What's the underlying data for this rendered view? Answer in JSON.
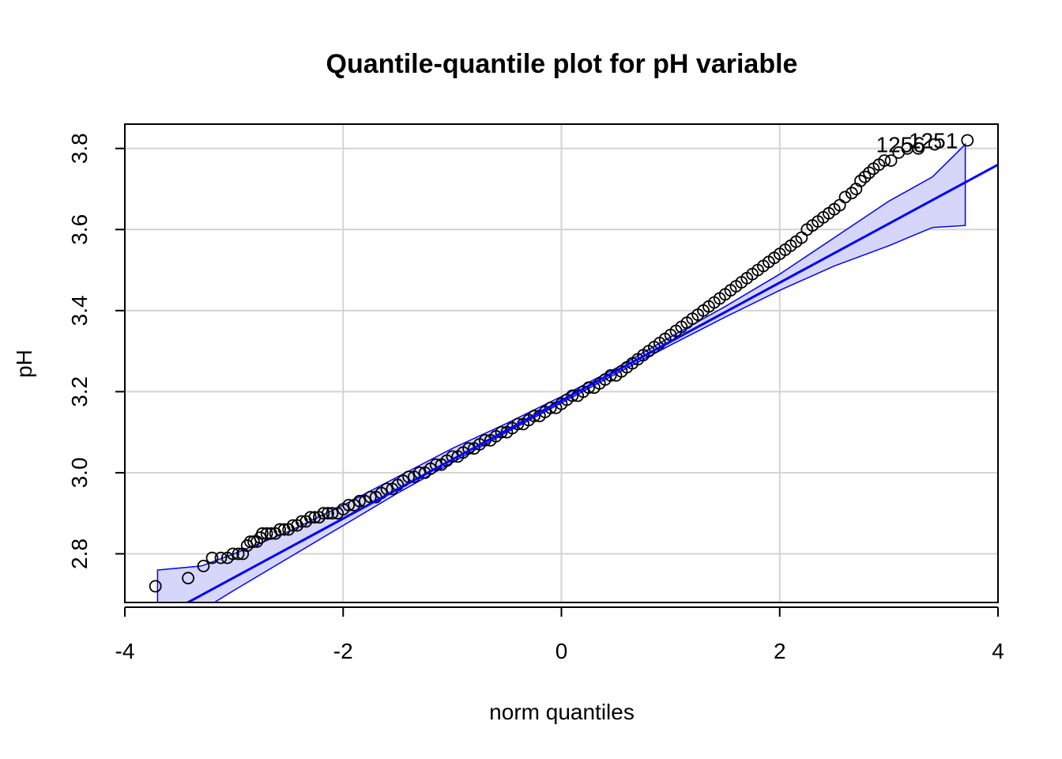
{
  "chart_data": {
    "type": "scatter",
    "title": "Quantile-quantile plot for pH variable",
    "xlabel": "norm quantiles",
    "ylabel": "pH",
    "xlim": [
      -4,
      4
    ],
    "ylim": [
      2.68,
      3.86
    ],
    "x_ticks": [
      -4,
      -2,
      0,
      2,
      4
    ],
    "y_ticks": [
      2.8,
      3.0,
      3.2,
      3.4,
      3.6,
      3.8
    ],
    "grid": true,
    "reference_line": {
      "intercept": 3.178,
      "slope": 0.1455
    },
    "confidence_envelope": {
      "x": [
        -3.7,
        -3.3,
        -3.0,
        -2.5,
        -2.0,
        -1.5,
        -1.0,
        -0.5,
        0.0,
        0.5,
        1.0,
        1.5,
        2.0,
        2.5,
        3.0,
        3.4,
        3.7
      ],
      "lower": [
        2.58,
        2.66,
        2.71,
        2.79,
        2.87,
        2.95,
        3.025,
        3.1,
        3.172,
        3.244,
        3.315,
        3.384,
        3.45,
        3.51,
        3.56,
        3.605,
        3.61
      ],
      "upper": [
        2.76,
        2.77,
        2.8,
        2.855,
        2.92,
        2.99,
        3.06,
        3.122,
        3.188,
        3.258,
        3.335,
        3.41,
        3.49,
        3.58,
        3.67,
        3.73,
        3.81
      ]
    },
    "points": [
      [
        -3.72,
        2.72
      ],
      [
        -3.42,
        2.74
      ],
      [
        -3.28,
        2.77
      ],
      [
        -3.2,
        2.79
      ],
      [
        -3.12,
        2.79
      ],
      [
        -3.06,
        2.79
      ],
      [
        -3.01,
        2.8
      ],
      [
        -2.96,
        2.8
      ],
      [
        -2.92,
        2.8
      ],
      [
        -2.88,
        2.82
      ],
      [
        -2.85,
        2.83
      ],
      [
        -2.82,
        2.83
      ],
      [
        -2.79,
        2.83
      ],
      [
        -2.76,
        2.84
      ],
      [
        -2.74,
        2.85
      ],
      [
        -2.7,
        2.85
      ],
      [
        -2.66,
        2.85
      ],
      [
        -2.62,
        2.85
      ],
      [
        -2.58,
        2.86
      ],
      [
        -2.54,
        2.86
      ],
      [
        -2.5,
        2.86
      ],
      [
        -2.46,
        2.87
      ],
      [
        -2.42,
        2.87
      ],
      [
        -2.38,
        2.88
      ],
      [
        -2.34,
        2.88
      ],
      [
        -2.3,
        2.89
      ],
      [
        -2.26,
        2.89
      ],
      [
        -2.22,
        2.89
      ],
      [
        -2.18,
        2.9
      ],
      [
        -2.14,
        2.9
      ],
      [
        -2.1,
        2.9
      ],
      [
        -2.05,
        2.9
      ],
      [
        -2.0,
        2.91
      ],
      [
        -1.95,
        2.92
      ],
      [
        -1.9,
        2.92
      ],
      [
        -1.85,
        2.93
      ],
      [
        -1.8,
        2.93
      ],
      [
        -1.75,
        2.94
      ],
      [
        -1.7,
        2.94
      ],
      [
        -1.65,
        2.95
      ],
      [
        -1.6,
        2.96
      ],
      [
        -1.55,
        2.96
      ],
      [
        -1.5,
        2.97
      ],
      [
        -1.45,
        2.98
      ],
      [
        -1.4,
        2.99
      ],
      [
        -1.35,
        2.99
      ],
      [
        -1.3,
        3.0
      ],
      [
        -1.25,
        3.0
      ],
      [
        -1.2,
        3.01
      ],
      [
        -1.15,
        3.02
      ],
      [
        -1.1,
        3.02
      ],
      [
        -1.05,
        3.03
      ],
      [
        -1.0,
        3.04
      ],
      [
        -0.95,
        3.04
      ],
      [
        -0.9,
        3.05
      ],
      [
        -0.85,
        3.06
      ],
      [
        -0.8,
        3.06
      ],
      [
        -0.75,
        3.07
      ],
      [
        -0.7,
        3.08
      ],
      [
        -0.65,
        3.08
      ],
      [
        -0.6,
        3.09
      ],
      [
        -0.55,
        3.1
      ],
      [
        -0.5,
        3.1
      ],
      [
        -0.45,
        3.11
      ],
      [
        -0.4,
        3.12
      ],
      [
        -0.35,
        3.12
      ],
      [
        -0.3,
        3.13
      ],
      [
        -0.25,
        3.14
      ],
      [
        -0.2,
        3.14
      ],
      [
        -0.15,
        3.15
      ],
      [
        -0.1,
        3.16
      ],
      [
        -0.05,
        3.16
      ],
      [
        0.0,
        3.17
      ],
      [
        0.05,
        3.18
      ],
      [
        0.1,
        3.19
      ],
      [
        0.15,
        3.19
      ],
      [
        0.2,
        3.2
      ],
      [
        0.25,
        3.21
      ],
      [
        0.3,
        3.21
      ],
      [
        0.35,
        3.22
      ],
      [
        0.4,
        3.23
      ],
      [
        0.45,
        3.24
      ],
      [
        0.5,
        3.24
      ],
      [
        0.55,
        3.25
      ],
      [
        0.6,
        3.26
      ],
      [
        0.65,
        3.27
      ],
      [
        0.7,
        3.28
      ],
      [
        0.75,
        3.29
      ],
      [
        0.8,
        3.3
      ],
      [
        0.85,
        3.31
      ],
      [
        0.9,
        3.32
      ],
      [
        0.95,
        3.33
      ],
      [
        1.0,
        3.34
      ],
      [
        1.05,
        3.35
      ],
      [
        1.1,
        3.36
      ],
      [
        1.15,
        3.37
      ],
      [
        1.2,
        3.38
      ],
      [
        1.25,
        3.39
      ],
      [
        1.3,
        3.4
      ],
      [
        1.35,
        3.41
      ],
      [
        1.4,
        3.42
      ],
      [
        1.45,
        3.43
      ],
      [
        1.5,
        3.44
      ],
      [
        1.55,
        3.45
      ],
      [
        1.6,
        3.46
      ],
      [
        1.65,
        3.47
      ],
      [
        1.7,
        3.48
      ],
      [
        1.75,
        3.49
      ],
      [
        1.8,
        3.5
      ],
      [
        1.85,
        3.51
      ],
      [
        1.9,
        3.52
      ],
      [
        1.95,
        3.53
      ],
      [
        2.0,
        3.54
      ],
      [
        2.05,
        3.55
      ],
      [
        2.1,
        3.56
      ],
      [
        2.15,
        3.57
      ],
      [
        2.2,
        3.58
      ],
      [
        2.25,
        3.6
      ],
      [
        2.3,
        3.61
      ],
      [
        2.35,
        3.62
      ],
      [
        2.4,
        3.63
      ],
      [
        2.45,
        3.64
      ],
      [
        2.5,
        3.65
      ],
      [
        2.55,
        3.66
      ],
      [
        2.6,
        3.68
      ],
      [
        2.66,
        3.69
      ],
      [
        2.7,
        3.7
      ],
      [
        2.74,
        3.72
      ],
      [
        2.78,
        3.73
      ],
      [
        2.82,
        3.74
      ],
      [
        2.86,
        3.75
      ],
      [
        2.91,
        3.76
      ],
      [
        2.96,
        3.77
      ],
      [
        3.02,
        3.77
      ],
      [
        3.09,
        3.79
      ],
      [
        3.17,
        3.8
      ],
      [
        3.27,
        3.8
      ],
      [
        3.42,
        3.81
      ],
      [
        3.72,
        3.82
      ]
    ],
    "labeled_points": [
      {
        "label": "1256",
        "x": 3.42,
        "y": 3.81
      },
      {
        "label": "1251",
        "x": 3.72,
        "y": 3.82
      }
    ],
    "colors": {
      "line": "#0000ff",
      "band_fill": "#d6d6fa",
      "grid": "#d3d3d3",
      "points": "#000000"
    }
  }
}
